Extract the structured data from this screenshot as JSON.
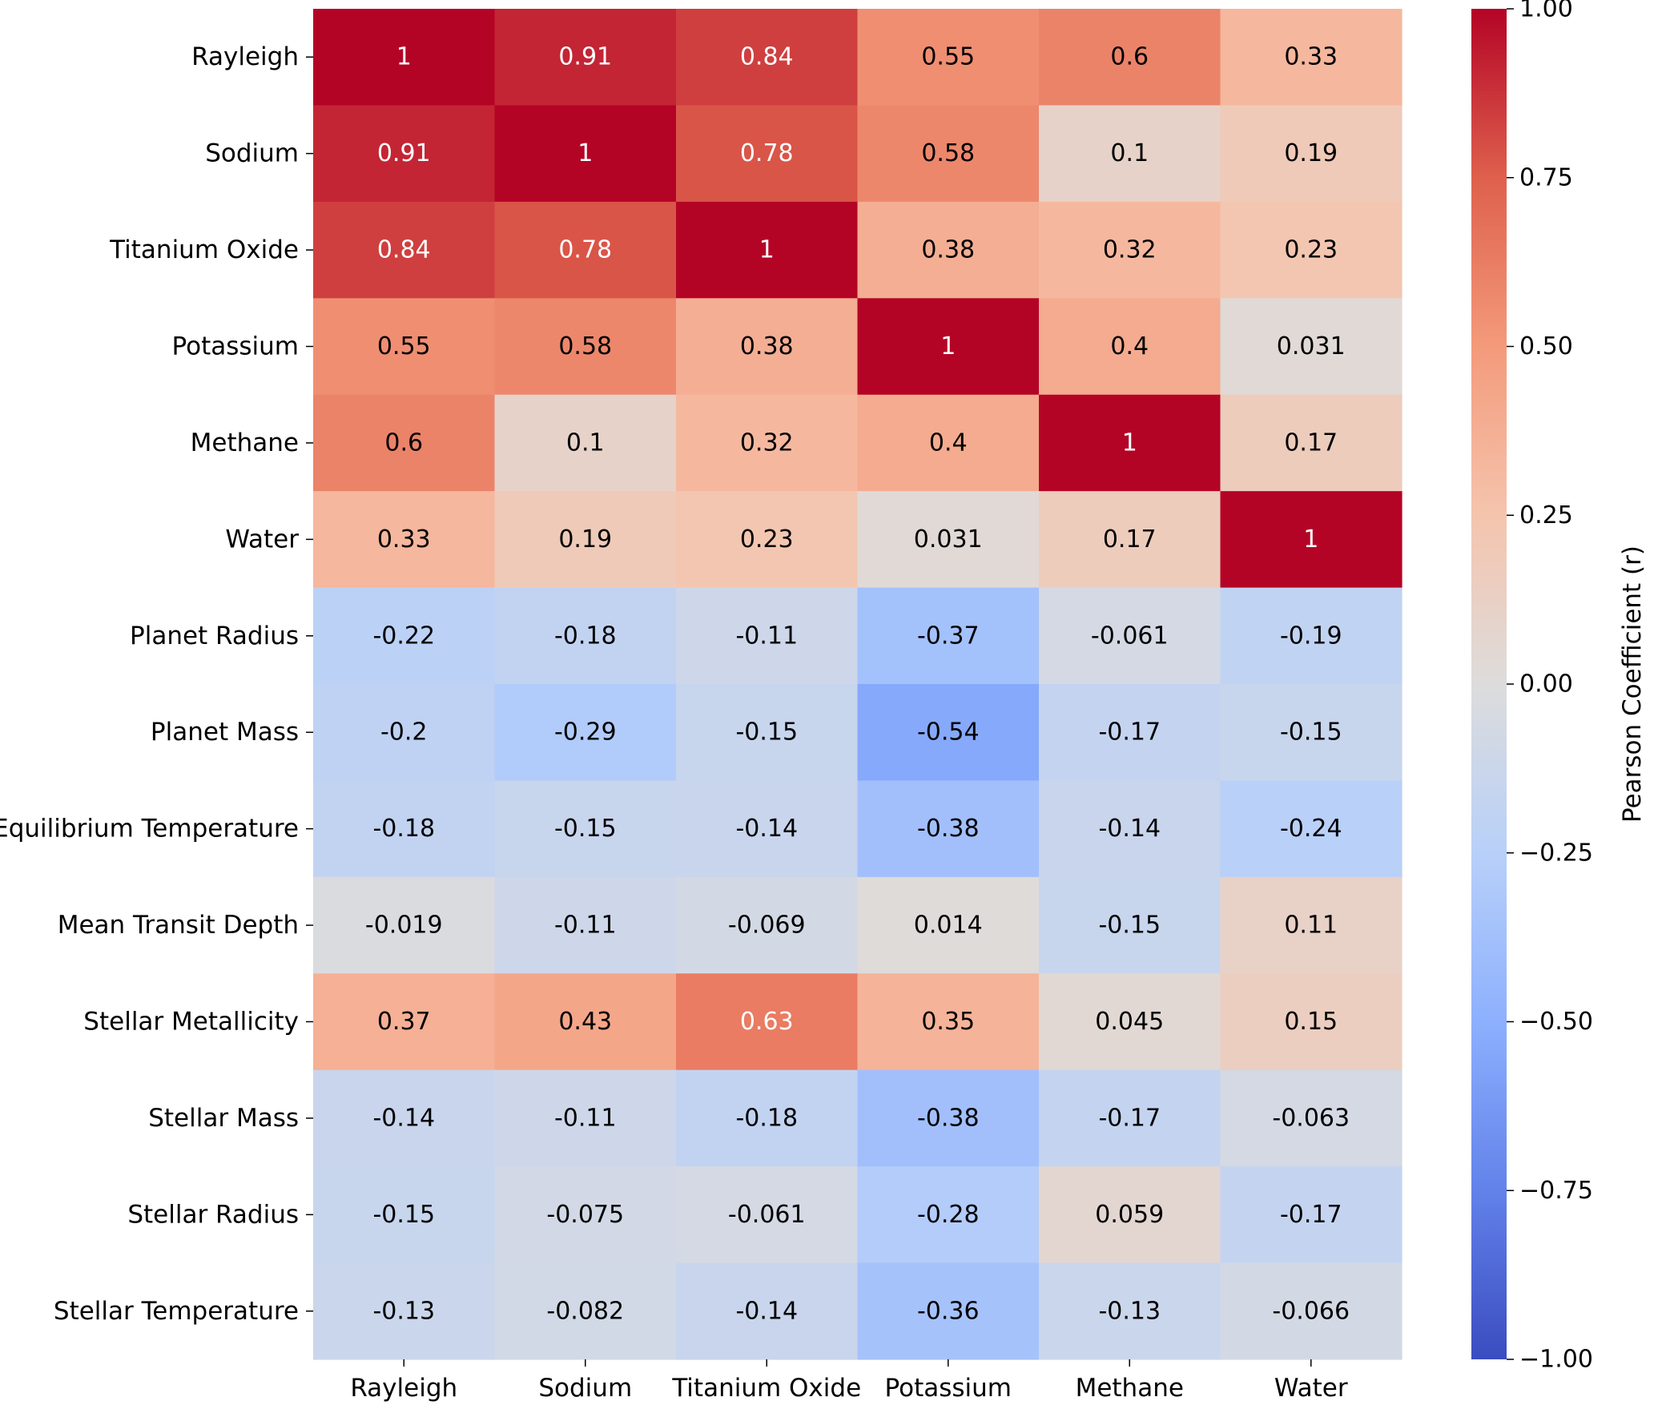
{
  "chart_data": {
    "type": "heatmap",
    "title": "",
    "columns": [
      "Rayleigh",
      "Sodium",
      "Titanium Oxide",
      "Potassium",
      "Methane",
      "Water"
    ],
    "rows": [
      "Rayleigh",
      "Sodium",
      "Titanium Oxide",
      "Potassium",
      "Methane",
      "Water",
      "Planet Radius",
      "Planet Mass",
      "Equilibrium Temperature",
      "Mean Transit Depth",
      "Stellar Metallicity",
      "Stellar Mass",
      "Stellar Radius",
      "Stellar Temperature"
    ],
    "values": [
      [
        1,
        0.91,
        0.84,
        0.55,
        0.6,
        0.33
      ],
      [
        0.91,
        1,
        0.78,
        0.58,
        0.1,
        0.19
      ],
      [
        0.84,
        0.78,
        1,
        0.38,
        0.32,
        0.23
      ],
      [
        0.55,
        0.58,
        0.38,
        1,
        0.4,
        0.031
      ],
      [
        0.6,
        0.1,
        0.32,
        0.4,
        1,
        0.17
      ],
      [
        0.33,
        0.19,
        0.23,
        0.031,
        0.17,
        1
      ],
      [
        -0.22,
        -0.18,
        -0.11,
        -0.37,
        -0.061,
        -0.19
      ],
      [
        -0.2,
        -0.29,
        -0.15,
        -0.54,
        -0.17,
        -0.15
      ],
      [
        -0.18,
        -0.15,
        -0.14,
        -0.38,
        -0.14,
        -0.24
      ],
      [
        -0.019,
        -0.11,
        -0.069,
        0.014,
        -0.15,
        0.11
      ],
      [
        0.37,
        0.43,
        0.63,
        0.35,
        0.045,
        0.15
      ],
      [
        -0.14,
        -0.11,
        -0.18,
        -0.38,
        -0.17,
        -0.063
      ],
      [
        -0.15,
        -0.075,
        -0.061,
        -0.28,
        0.059,
        -0.17
      ],
      [
        -0.13,
        -0.082,
        -0.14,
        -0.36,
        -0.13,
        -0.066
      ]
    ],
    "labels": [
      [
        "1",
        "0.91",
        "0.84",
        "0.55",
        "0.6",
        "0.33"
      ],
      [
        "0.91",
        "1",
        "0.78",
        "0.58",
        "0.1",
        "0.19"
      ],
      [
        "0.84",
        "0.78",
        "1",
        "0.38",
        "0.32",
        "0.23"
      ],
      [
        "0.55",
        "0.58",
        "0.38",
        "1",
        "0.4",
        "0.031"
      ],
      [
        "0.6",
        "0.1",
        "0.32",
        "0.4",
        "1",
        "0.17"
      ],
      [
        "0.33",
        "0.19",
        "0.23",
        "0.031",
        "0.17",
        "1"
      ],
      [
        "-0.22",
        "-0.18",
        "-0.11",
        "-0.37",
        "-0.061",
        "-0.19"
      ],
      [
        "-0.2",
        "-0.29",
        "-0.15",
        "-0.54",
        "-0.17",
        "-0.15"
      ],
      [
        "-0.18",
        "-0.15",
        "-0.14",
        "-0.38",
        "-0.14",
        "-0.24"
      ],
      [
        "-0.019",
        "-0.11",
        "-0.069",
        "0.014",
        "-0.15",
        "0.11"
      ],
      [
        "0.37",
        "0.43",
        "0.63",
        "0.35",
        "0.045",
        "0.15"
      ],
      [
        "-0.14",
        "-0.11",
        "-0.18",
        "-0.38",
        "-0.17",
        "-0.063"
      ],
      [
        "-0.15",
        "-0.075",
        "-0.061",
        "-0.28",
        "0.059",
        "-0.17"
      ],
      [
        "-0.13",
        "-0.082",
        "-0.14",
        "-0.36",
        "-0.13",
        "-0.066"
      ]
    ],
    "colormap": "coolwarm",
    "vmin": -1,
    "vmax": 1,
    "colorbar": {
      "label": "Pearson Coefficient (r)",
      "ticks": [
        1,
        0.75,
        0.5,
        0.25,
        0,
        -0.25,
        -0.5,
        -0.75,
        -1
      ],
      "tick_labels": [
        "1.00",
        "0.75",
        "0.50",
        "0.25",
        "0.00",
        "−0.25",
        "−0.50",
        "−0.75",
        "−1.00"
      ]
    }
  }
}
